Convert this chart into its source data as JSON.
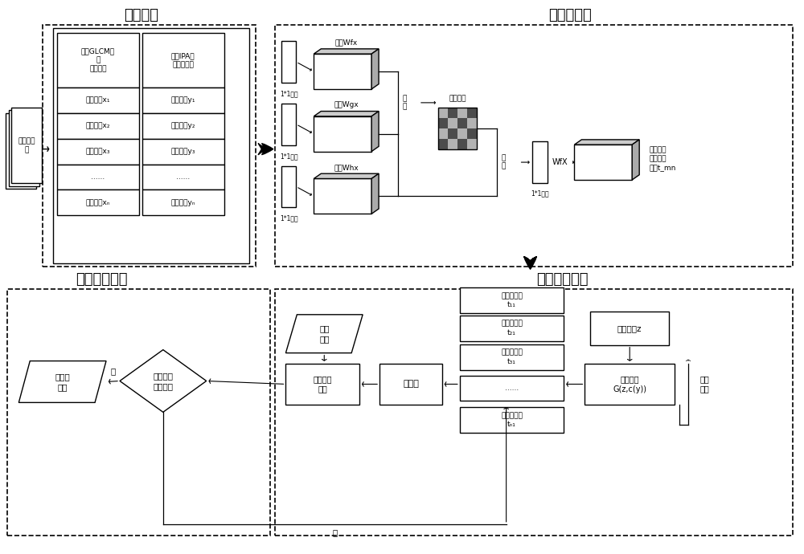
{
  "bg": "#ffffff",
  "sec1_title": "特征提取",
  "sec2_title": "注意力机制",
  "sec3_title": "分类结果输出",
  "sec4_title": "生成对抗网络",
  "hyperspectral": "高光谱影\n像",
  "glcm": "运用GLCM分\n类\n纹理特征",
  "ipa": "运用IPA分\n类光谱特征",
  "texture": [
    "纹理特征x₁",
    "纹理特征x₂",
    "纹理特征x₃",
    "......",
    "纹理特征xₙ"
  ],
  "spectral": [
    "光谱特征y₁",
    "光谱特征y₂",
    "光谱特征y₃",
    "......",
    "光谱特征yₙ"
  ],
  "feat_wf": "特征Wfx",
  "feat_wg": "特征Wgx",
  "feat_wh": "特征Whx",
  "attention_map": "注意力图",
  "zhuan_zhi": "转\n置",
  "conv11": "1*1卷积",
  "output_feat_label": "带有注意\n力的图像\n特征t_mn",
  "wf_x": "WfX",
  "measured": "实测\n数据",
  "discriminator": "判别器",
  "accuracy": "分类精度\n评价",
  "generator": "生成网络\nG(z,c(y))",
  "random_noise": "随机噪声z",
  "unknown": [
    "未知类特征\nt₁₁",
    "未知类特征\nt₂₁",
    "未知类特征\nt₃₁",
    "......",
    "未知类特征\ntₙ₁"
  ],
  "iter_train": "迭代\n训练",
  "judge": "判断是否\n符合条件",
  "output_map": "输出专\n题图",
  "yes": "是",
  "no": "否",
  "fs_title": 13,
  "fs_body": 7.5,
  "fs_small": 6.5,
  "fs_tiny": 6.0
}
